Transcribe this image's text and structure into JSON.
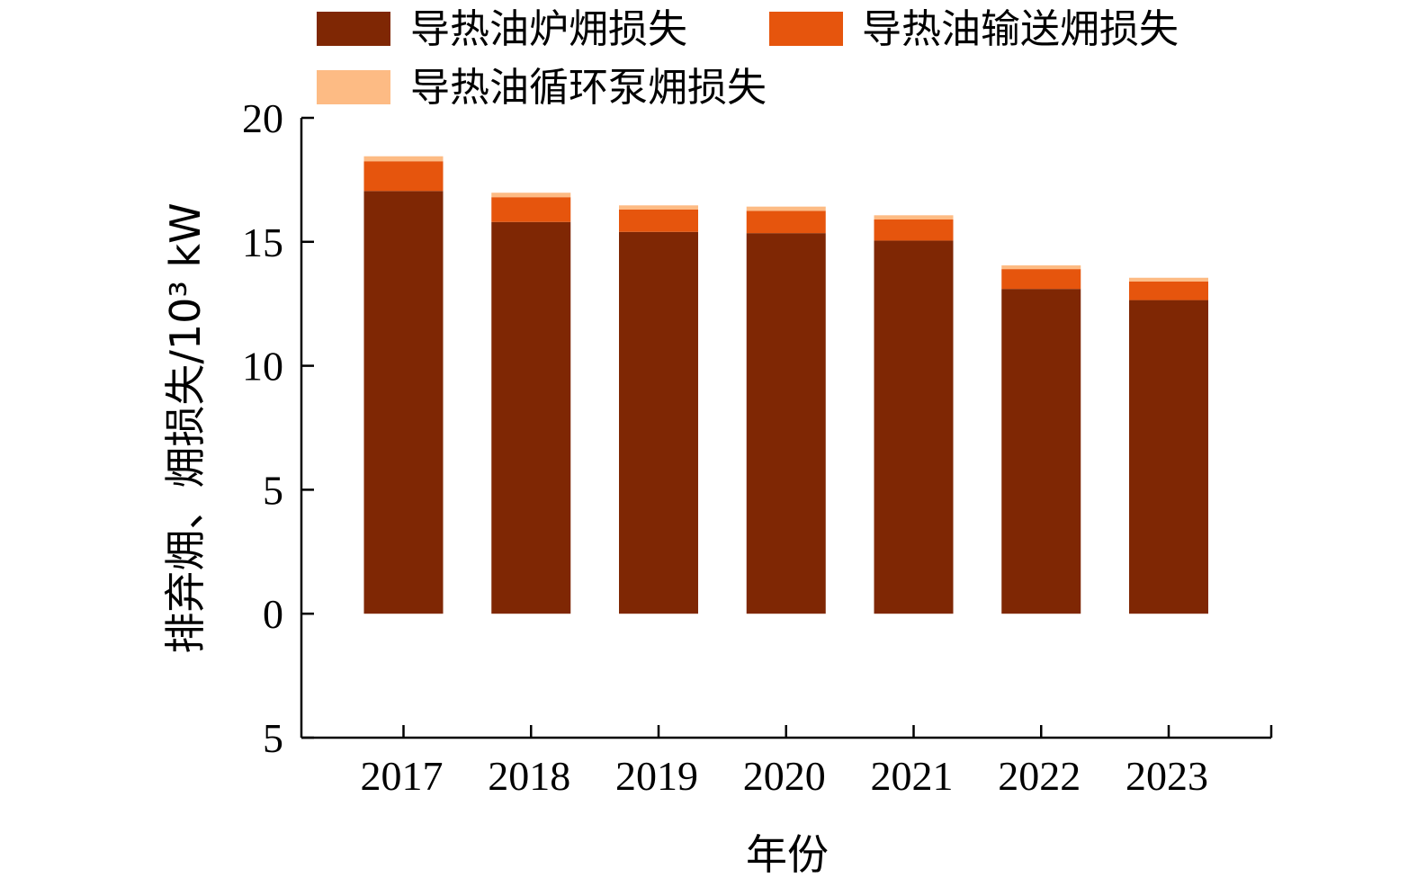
{
  "chart_data": {
    "type": "bar",
    "stacked": true,
    "title": "",
    "xlabel": "年份",
    "ylabel": "排弃㶲、㶲损失/10³ kW",
    "categories": [
      "2017",
      "2018",
      "2019",
      "2020",
      "2021",
      "2022",
      "2023"
    ],
    "ylim": [
      -5,
      20
    ],
    "yticks": [
      20,
      15,
      10,
      5,
      0,
      -5
    ],
    "ytick_labels": [
      "20",
      "15",
      "10",
      "5",
      "0",
      "5"
    ],
    "grid": false,
    "legend_position": "top",
    "series": [
      {
        "name": "导热油炉㶲损失",
        "color": "#7f2704",
        "values": [
          17.05,
          15.8,
          15.4,
          15.35,
          15.05,
          13.1,
          12.65
        ]
      },
      {
        "name": "导热油输送㶲损失",
        "color": "#e6550d",
        "values": [
          1.2,
          1.0,
          0.9,
          0.9,
          0.85,
          0.8,
          0.75
        ]
      },
      {
        "name": "导热油循环泵㶲损失",
        "color": "#fdbb84",
        "values": [
          0.2,
          0.18,
          0.17,
          0.17,
          0.17,
          0.15,
          0.15
        ]
      }
    ]
  }
}
